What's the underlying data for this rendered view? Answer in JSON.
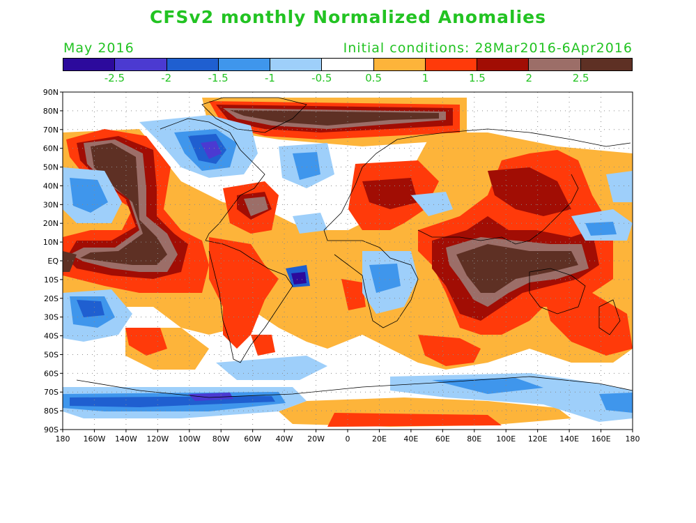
{
  "title": "CFSv2 monthly Normalized Anomalies",
  "month": "May 2016",
  "initial_conditions": "Initial conditions: 28Mar2016-6Apr2016",
  "colorbar": {
    "colors": [
      "#2c0a9c",
      "#4b3ad1",
      "#1f5fd0",
      "#3f96ec",
      "#9ecffa",
      "#ffffff",
      "#fdb43a",
      "#ff3a0a",
      "#a10d04",
      "#9c6e68",
      "#5e3024"
    ],
    "labels": [
      "-2.5",
      "-2",
      "-1.5",
      "-1",
      "-0.5",
      "0.5",
      "1",
      "1.5",
      "2",
      "2.5"
    ]
  },
  "lat_labels": [
    "90N",
    "80N",
    "70N",
    "60N",
    "50N",
    "40N",
    "30N",
    "20N",
    "10N",
    "EQ",
    "10S",
    "20S",
    "30S",
    "40S",
    "50S",
    "60S",
    "70S",
    "80S",
    "90S"
  ],
  "lon_labels": [
    "180",
    "160W",
    "140W",
    "120W",
    "100W",
    "80W",
    "60W",
    "40W",
    "20W",
    "0",
    "20E",
    "40E",
    "60E",
    "80E",
    "100E",
    "120E",
    "140E",
    "160E",
    "180"
  ]
}
